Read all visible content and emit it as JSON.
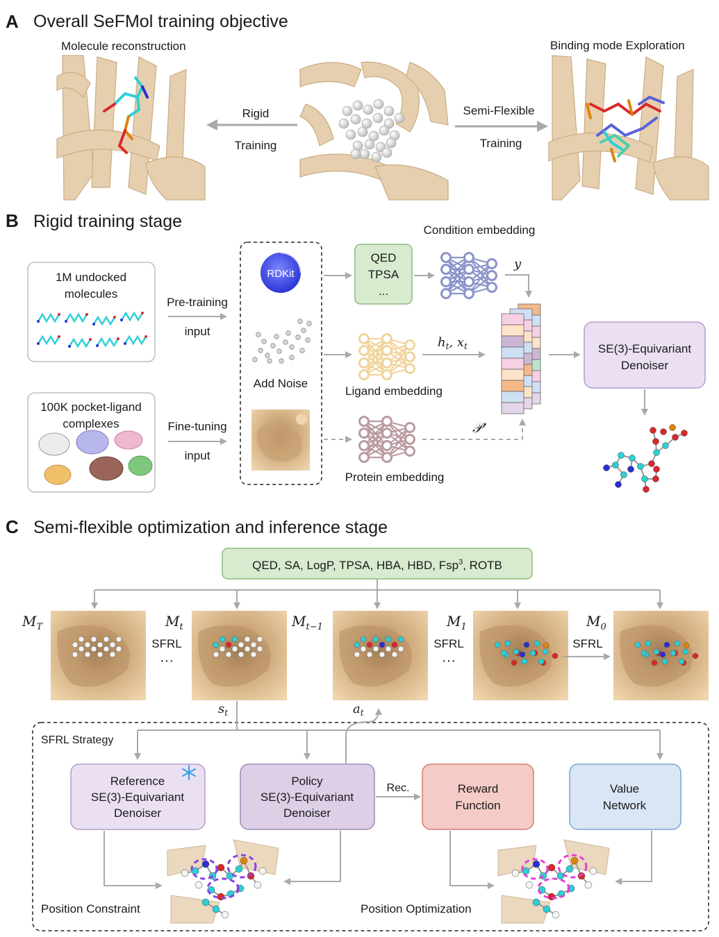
{
  "panel_a": {
    "letter": "A",
    "title": "Overall SeFMol training objective",
    "left_caption": "Molecule reconstruction",
    "right_caption": "Binding mode Exploration",
    "arrow_left_top": "Rigid",
    "arrow_left_bottom": "Training",
    "arrow_right_top": "Semi-Flexible",
    "arrow_right_bottom": "Training"
  },
  "panel_b": {
    "letter": "B",
    "title": "Rigid training stage",
    "box_molecules": [
      "1M undocked",
      "molecules"
    ],
    "box_complexes": [
      "100K pocket-ligand",
      "complexes"
    ],
    "pretraining": [
      "Pre-training",
      "input"
    ],
    "finetuning": [
      "Fine-tuning",
      "input"
    ],
    "rdkit": "RDKit",
    "add_noise": "Add Noise",
    "props": [
      "QED",
      "TPSA",
      "..."
    ],
    "condition_embedding": "Condition embedding",
    "ligand_embedding": "Ligand embedding",
    "protein_embedding": "Protein embedding",
    "y_label": "y",
    "ht_label": "h",
    "ht_sub": "t",
    "xt_label": "x",
    "xt_sub": "t",
    "p_label": "𝒫",
    "p_sup": "⋆",
    "denoiser": [
      "SE(3)-Equivariant",
      "Denoiser"
    ]
  },
  "panel_c": {
    "letter": "C",
    "title": "Semi-flexible optimization and inference stage",
    "props_main": "QED, SA, LogP, TPSA, HBA, HBD, Fsp",
    "props_sup": "3",
    "props_end": ", ROTB",
    "states": [
      {
        "sym": "M",
        "sub": "T"
      },
      {
        "sym": "M",
        "sub": "t"
      },
      {
        "sym": "M",
        "sub": "t−1"
      },
      {
        "sym": "M",
        "sub": "1"
      },
      {
        "sym": "M",
        "sub": "0"
      }
    ],
    "sfrl": "SFRL",
    "ellipsis": "···",
    "st": "s",
    "st_sub": "t",
    "at": "a",
    "at_sub": "t",
    "strategy": "SFRL Strategy",
    "reference": [
      "Reference",
      "SE(3)-Equivariant",
      "Denoiser"
    ],
    "policy": [
      "Policy",
      "SE(3)-Equivariant",
      "Denoiser"
    ],
    "rec": "Rec.",
    "reward": [
      "Reward",
      "Function"
    ],
    "value": [
      "Value",
      "Network"
    ],
    "position_constraint": "Position Constraint",
    "position_optimization": "Position Optimization"
  },
  "colors": {
    "protein": "#e6cfae",
    "protein_dark": "#c9ac84",
    "surface": "#dcb98a",
    "green_box": "#d8ebcf",
    "purple_box": "#ebe0f3",
    "policy_box": "#ddd0e6",
    "reward_box": "#f4cbc6",
    "value_box": "#d9e6f6",
    "arrow": "#a9a9a9",
    "carbon": "#2dcfd6",
    "oxygen": "#d9282a",
    "nitrogen": "#2b2fd0",
    "phosphorus": "#e0820c",
    "noise_atom": "#d8d8d8"
  },
  "icons": [
    "rdkit-logo-icon",
    "snowflake-icon",
    "neural-network-icon"
  ]
}
